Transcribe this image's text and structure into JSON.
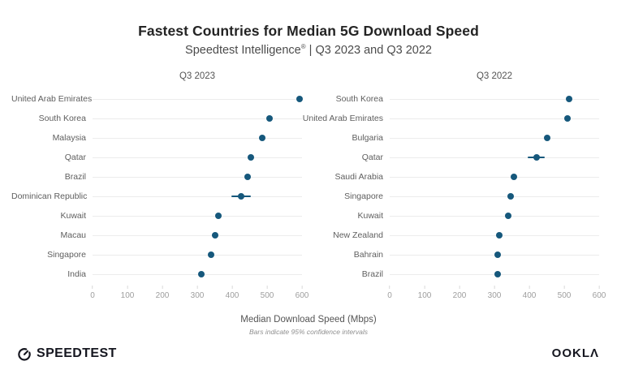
{
  "header": {
    "title": "Fastest Countries for Median 5G Download Speed",
    "subtitle_brand": "Speedtest Intelligence",
    "subtitle_reg": "®",
    "subtitle_rest": " | Q3 2023 and Q3 2022"
  },
  "chart_data": [
    {
      "type": "scatter",
      "title": "Q3 2023",
      "orientation": "horizontal-dot-plot",
      "xlim": [
        0,
        600
      ],
      "ticks": [
        0,
        100,
        200,
        300,
        400,
        500,
        600
      ],
      "grid": true,
      "categories": [
        "United Arab Emirates",
        "South Korea",
        "Malaysia",
        "Qatar",
        "Brazil",
        "Dominican Republic",
        "Kuwait",
        "Macau",
        "Singapore",
        "India"
      ],
      "values": [
        592,
        508,
        486,
        453,
        445,
        425,
        360,
        350,
        339,
        311
      ],
      "ci_halfwidth": [
        0,
        0,
        0,
        0,
        0,
        28,
        0,
        8,
        0,
        0
      ]
    },
    {
      "type": "scatter",
      "title": "Q3 2022",
      "orientation": "horizontal-dot-plot",
      "xlim": [
        0,
        600
      ],
      "ticks": [
        0,
        100,
        200,
        300,
        400,
        500,
        600
      ],
      "grid": true,
      "categories": [
        "South Korea",
        "United Arab Emirates",
        "Bulgaria",
        "Qatar",
        "Saudi Arabia",
        "Singapore",
        "Kuwait",
        "New Zealand",
        "Bahrain",
        "Brazil"
      ],
      "values": [
        514,
        510,
        450,
        420,
        355,
        347,
        340,
        315,
        310,
        310
      ],
      "ci_halfwidth": [
        0,
        0,
        0,
        25,
        0,
        0,
        0,
        0,
        0,
        0
      ]
    }
  ],
  "axis": {
    "label": "Median Download Speed (Mbps)",
    "footnote": "Bars indicate 95% confidence intervals"
  },
  "footer": {
    "speedtest_label": "SPEEDTEST",
    "ookla_label": "OOKLΛ"
  },
  "colors": {
    "dot": "#16587C",
    "gridline": "#ECECEC",
    "tick_label": "#9E9E9E",
    "country_label": "#5E5E5E",
    "title": "#242424"
  }
}
